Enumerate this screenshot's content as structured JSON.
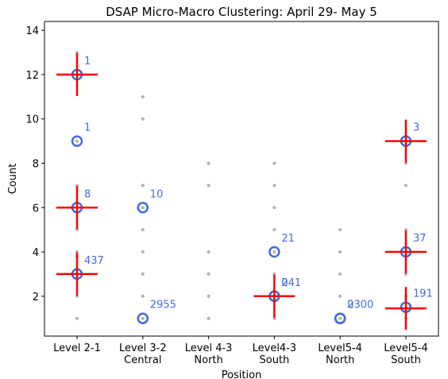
{
  "chart_data": {
    "type": "scatter",
    "title": "DSAP Micro-Macro Clustering: April 29- May 5",
    "xlabel": "Position",
    "ylabel": "Count",
    "ylim": [
      0.2,
      14.4
    ],
    "yticks": [
      2,
      4,
      6,
      8,
      10,
      12,
      14
    ],
    "grid": false,
    "categories": [
      [
        "Level 2-1"
      ],
      [
        "Level 3-2",
        "Central"
      ],
      [
        "Level 4-3",
        "North"
      ],
      [
        "Level4-3",
        "South"
      ],
      [
        "Level5-4",
        "North"
      ],
      [
        "Level5-4",
        "South"
      ]
    ],
    "colors": {
      "micro_points": "#b0b0b0",
      "cluster_circle": "#4169e1",
      "centroid_cross": "#ff0000",
      "label": "#4169e1"
    },
    "series": [
      {
        "type": "micro-points",
        "points": [
          [
            0,
            1
          ],
          [
            0,
            2
          ],
          [
            0,
            3
          ],
          [
            0,
            3.8
          ],
          [
            0,
            4
          ],
          [
            0,
            5
          ],
          [
            0,
            6
          ],
          [
            0,
            7
          ],
          [
            0,
            9
          ],
          [
            0,
            12
          ],
          [
            0,
            13
          ],
          [
            1,
            1
          ],
          [
            1,
            2
          ],
          [
            1,
            3
          ],
          [
            1,
            4
          ],
          [
            1,
            5
          ],
          [
            1,
            6
          ],
          [
            1,
            7
          ],
          [
            1,
            10
          ],
          [
            1,
            11
          ],
          [
            2,
            1
          ],
          [
            2,
            2
          ],
          [
            2,
            3
          ],
          [
            2,
            4
          ],
          [
            2,
            7
          ],
          [
            2,
            8
          ],
          [
            3,
            1
          ],
          [
            3,
            2
          ],
          [
            3,
            3
          ],
          [
            3,
            4
          ],
          [
            3,
            5
          ],
          [
            3,
            6
          ],
          [
            3,
            7
          ],
          [
            3,
            8
          ],
          [
            4,
            1
          ],
          [
            4,
            2
          ],
          [
            4,
            3
          ],
          [
            4,
            4
          ],
          [
            4,
            5
          ],
          [
            5,
            1
          ],
          [
            5,
            2
          ],
          [
            5,
            3
          ],
          [
            5,
            4
          ],
          [
            5,
            5
          ],
          [
            5,
            7
          ],
          [
            5,
            8
          ],
          [
            5,
            9
          ]
        ]
      },
      {
        "type": "micro-clusters",
        "points": [
          {
            "x": 0,
            "y": 12,
            "label": "1"
          },
          {
            "x": 0,
            "y": 9,
            "label": "1"
          },
          {
            "x": 0,
            "y": 6,
            "label": "8"
          },
          {
            "x": 0,
            "y": 3,
            "label": "437"
          },
          {
            "x": 1,
            "y": 6,
            "label": "10"
          },
          {
            "x": 1,
            "y": 1,
            "label": "2955"
          },
          {
            "x": 3,
            "y": 4,
            "label": "21"
          },
          {
            "x": 3,
            "y": 2,
            "label": "241"
          },
          {
            "x": 3,
            "y": 2,
            "label": "0"
          },
          {
            "x": 4,
            "y": 1,
            "label": "2300"
          },
          {
            "x": 4,
            "y": 1,
            "label": "0"
          },
          {
            "x": 5,
            "y": 9,
            "label": "3"
          },
          {
            "x": 5,
            "y": 4,
            "label": "37"
          },
          {
            "x": 5,
            "y": 1.5,
            "label": "191"
          }
        ]
      },
      {
        "type": "macro-centroids",
        "points": [
          {
            "x": 0,
            "y": 12
          },
          {
            "x": 0,
            "y": 6
          },
          {
            "x": 0,
            "y": 3
          },
          {
            "x": 3,
            "y": 2
          },
          {
            "x": 5,
            "y": 9
          },
          {
            "x": 5,
            "y": 4
          },
          {
            "x": 5,
            "y": 1.45
          }
        ]
      }
    ]
  }
}
